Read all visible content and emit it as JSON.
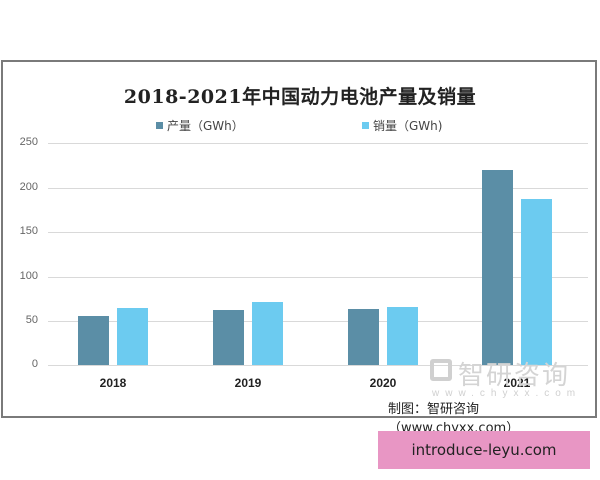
{
  "chart_data": {
    "type": "bar",
    "title": "2018-2021年中国动力电池产量及销量",
    "categories": [
      "2018",
      "2019",
      "2020",
      "2021"
    ],
    "series": [
      {
        "name": "产量（GWh）",
        "color": "#5b8ea6",
        "values": [
          55.5,
          62.0,
          63.6,
          219.7
        ]
      },
      {
        "name": "销量（GWh)",
        "color": "#6ccbf0",
        "values": [
          64.4,
          71.0,
          65.5,
          186.9
        ]
      }
    ],
    "xlabel": "",
    "ylabel": "",
    "ylim": [
      0,
      250
    ],
    "yticks": [
      "250",
      "200",
      "150",
      "100",
      "50",
      "0"
    ],
    "grid": true,
    "legend_position": "top"
  },
  "legend": {
    "production": "产量（GWh）",
    "sales": "销量（GWh)"
  },
  "watermark": {
    "brand": "智研咨询",
    "url": "www.chyxx.com"
  },
  "source": "制图：智研咨询（www.chyxx.com）",
  "banner": "introduce-leyu.com"
}
